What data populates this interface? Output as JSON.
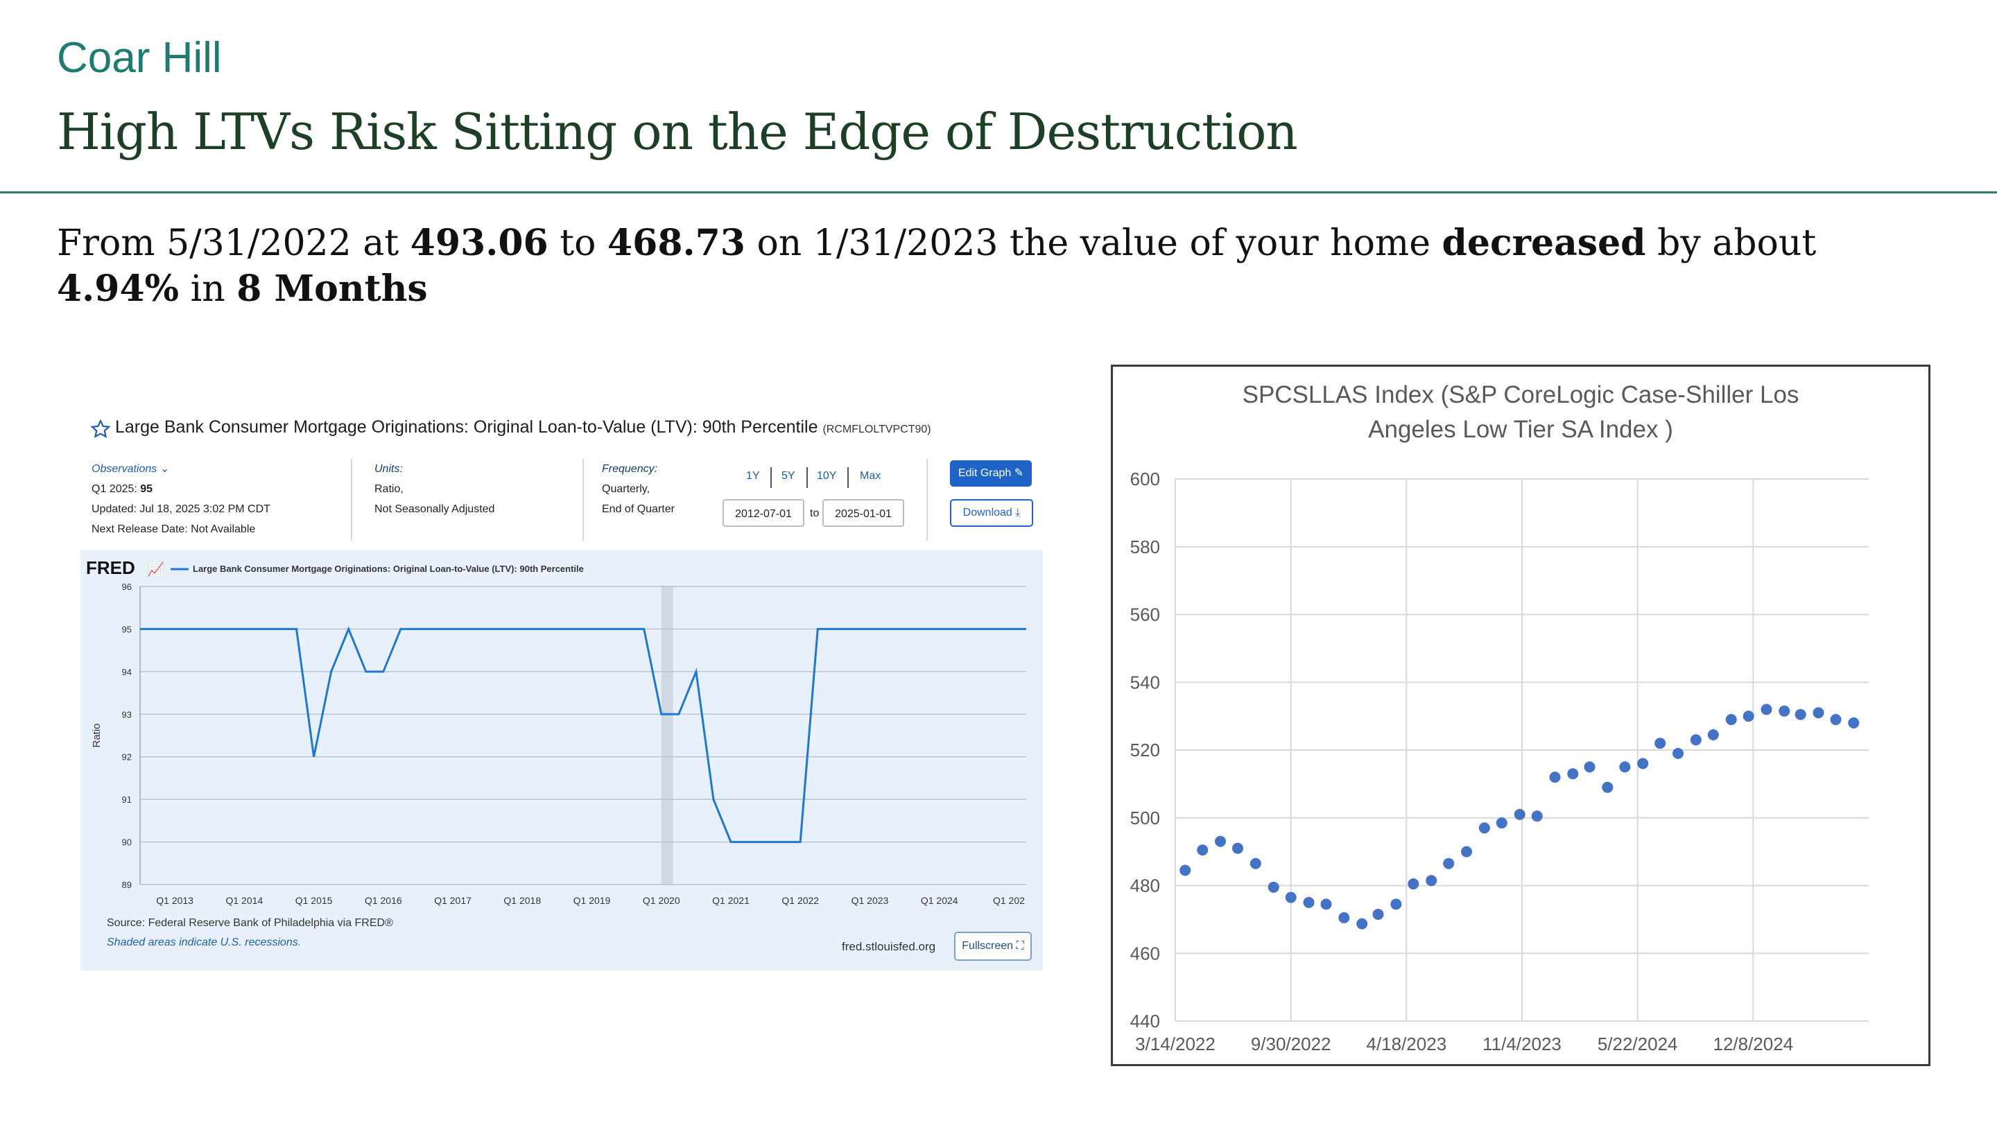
{
  "header": {
    "brand": "Coar Hill",
    "title": "High LTVs Risk Sitting on the Edge of Destruction"
  },
  "summary": {
    "t1": "From 5/31/2022 at ",
    "v1": "493.06",
    "t2": " to ",
    "v2": "468.73",
    "t3": " on 1/31/2023 the value of your home ",
    "v3": "decreased",
    "t4": " by about ",
    "v4": "4.94%",
    "t5": " in ",
    "v5": "8 Months"
  },
  "fred": {
    "title": "Large Bank Consumer Mortgage Originations: Original Loan-to-Value (LTV): 90th Percentile",
    "code": "(RCMFLOLTVPCT90)",
    "observations_label": "Observations",
    "obs_q": "Q1 2025:",
    "obs_v": "95",
    "updated": "Updated: Jul 18, 2025 3:02 PM CDT",
    "next_release": "Next Release Date: Not Available",
    "units_label": "Units:",
    "units_1": "Ratio,",
    "units_2": "Not Seasonally Adjusted",
    "freq_label": "Frequency:",
    "freq_1": "Quarterly,",
    "freq_2": "End of Quarter",
    "range_1y": "1Y",
    "range_5y": "5Y",
    "range_10y": "10Y",
    "range_max": "Max",
    "date_from": "2012-07-01",
    "date_to_label": "to",
    "date_to": "2025-01-01",
    "edit_graph": "Edit Graph",
    "download": "Download",
    "logo": "FRED",
    "legend": "Large Bank Consumer Mortgage Originations: Original Loan-to-Value (LTV): 90th Percentile",
    "source": "Source: Federal Reserve Bank of Philadelphia via FRED®",
    "recession_note": "Shaded areas indicate U.S. recessions.",
    "site": "fred.stlouisfed.org",
    "fullscreen": "Fullscreen",
    "colors": {
      "line": "#1f77d0",
      "button": "#1f63c6",
      "chart_bg": "#e8f1fb"
    }
  },
  "chart_data": [
    {
      "type": "line",
      "title": "",
      "ylabel": "Ratio",
      "ylim": [
        89,
        96
      ],
      "yticks": [
        89,
        90,
        91,
        92,
        93,
        94,
        95,
        96
      ],
      "xlim": [
        2012.5,
        2025.25
      ],
      "xticks": [
        {
          "x": 2013.0,
          "label": "Q1 2013"
        },
        {
          "x": 2014.0,
          "label": "Q1 2014"
        },
        {
          "x": 2015.0,
          "label": "Q1 2015"
        },
        {
          "x": 2016.0,
          "label": "Q1 2016"
        },
        {
          "x": 2017.0,
          "label": "Q1 2017"
        },
        {
          "x": 2018.0,
          "label": "Q1 2018"
        },
        {
          "x": 2019.0,
          "label": "Q1 2019"
        },
        {
          "x": 2020.0,
          "label": "Q1 2020"
        },
        {
          "x": 2021.0,
          "label": "Q1 2021"
        },
        {
          "x": 2022.0,
          "label": "Q1 2022"
        },
        {
          "x": 2023.0,
          "label": "Q1 2023"
        },
        {
          "x": 2024.0,
          "label": "Q1 2024"
        },
        {
          "x": 2025.0,
          "label": "Q1 202"
        }
      ],
      "recession": [
        2020.0,
        2020.17
      ],
      "series": [
        {
          "name": "Large Bank Consumer Mortgage Originations: Original Loan-to-Value (LTV): 90th Percentile",
          "x": [
            2012.5,
            2014.75,
            2015.0,
            2015.25,
            2015.5,
            2015.75,
            2016.0,
            2016.25,
            2019.75,
            2020.0,
            2020.25,
            2020.5,
            2020.75,
            2021.0,
            2021.25,
            2021.75,
            2022.0,
            2022.25,
            2025.25
          ],
          "values": [
            95,
            95,
            92,
            94,
            95,
            94,
            94,
            95,
            95,
            93,
            93,
            94,
            91,
            90,
            90,
            90,
            90,
            95,
            95
          ]
        }
      ]
    },
    {
      "type": "scatter",
      "title": "SPCSLLAS Index (S&P CoreLogic Case-Shiller Los Angeles Low Tier SA Index )",
      "title_lines": [
        "SPCSLLAS Index (S&P CoreLogic Case-Shiller Los",
        "Angeles Low Tier SA Index )"
      ],
      "xlabel": "",
      "ylabel": "",
      "ylim": [
        440,
        600
      ],
      "yticks": [
        440,
        460,
        480,
        500,
        520,
        540,
        560,
        580,
        600
      ],
      "xticks": [
        "3/14/2022",
        "9/30/2022",
        "4/18/2023",
        "11/4/2023",
        "5/22/2024",
        "12/8/2024"
      ],
      "x_start_label": "3/14/2022",
      "x_step_days": 200,
      "x_range_days": [
        0,
        1200
      ],
      "series": [
        {
          "x": [
            "2022-03-31",
            "2022-04-30",
            "2022-05-31",
            "2022-06-30",
            "2022-07-31",
            "2022-08-31",
            "2022-09-30",
            "2022-10-31",
            "2022-11-30",
            "2022-12-31",
            "2023-01-31",
            "2023-02-28",
            "2023-03-31",
            "2023-04-30",
            "2023-05-31",
            "2023-06-30",
            "2023-07-31",
            "2023-08-31",
            "2023-09-30",
            "2023-10-31",
            "2023-11-30",
            "2023-12-31",
            "2024-01-31",
            "2024-02-29",
            "2024-03-31",
            "2024-04-30",
            "2024-05-31",
            "2024-06-30",
            "2024-07-31",
            "2024-08-31",
            "2024-09-30",
            "2024-10-31",
            "2024-11-30",
            "2024-12-31",
            "2025-01-31",
            "2025-02-28",
            "2025-03-31",
            "2025-04-30",
            "2025-05-31"
          ],
          "values": [
            484.5,
            490.5,
            493.06,
            491,
            486.5,
            479.5,
            476.5,
            475,
            474.5,
            470.5,
            468.73,
            471.5,
            474.5,
            480.5,
            481.5,
            486.5,
            490,
            497,
            498.5,
            501,
            500.5,
            512,
            513,
            515,
            509,
            515,
            516,
            522,
            519,
            523,
            524.5,
            529,
            530,
            532,
            531.5,
            530.5,
            531,
            529,
            528
          ]
        }
      ],
      "colors": {
        "marker": "#4472c4",
        "grid": "#d9d9d9",
        "title": "#595959"
      }
    }
  ]
}
